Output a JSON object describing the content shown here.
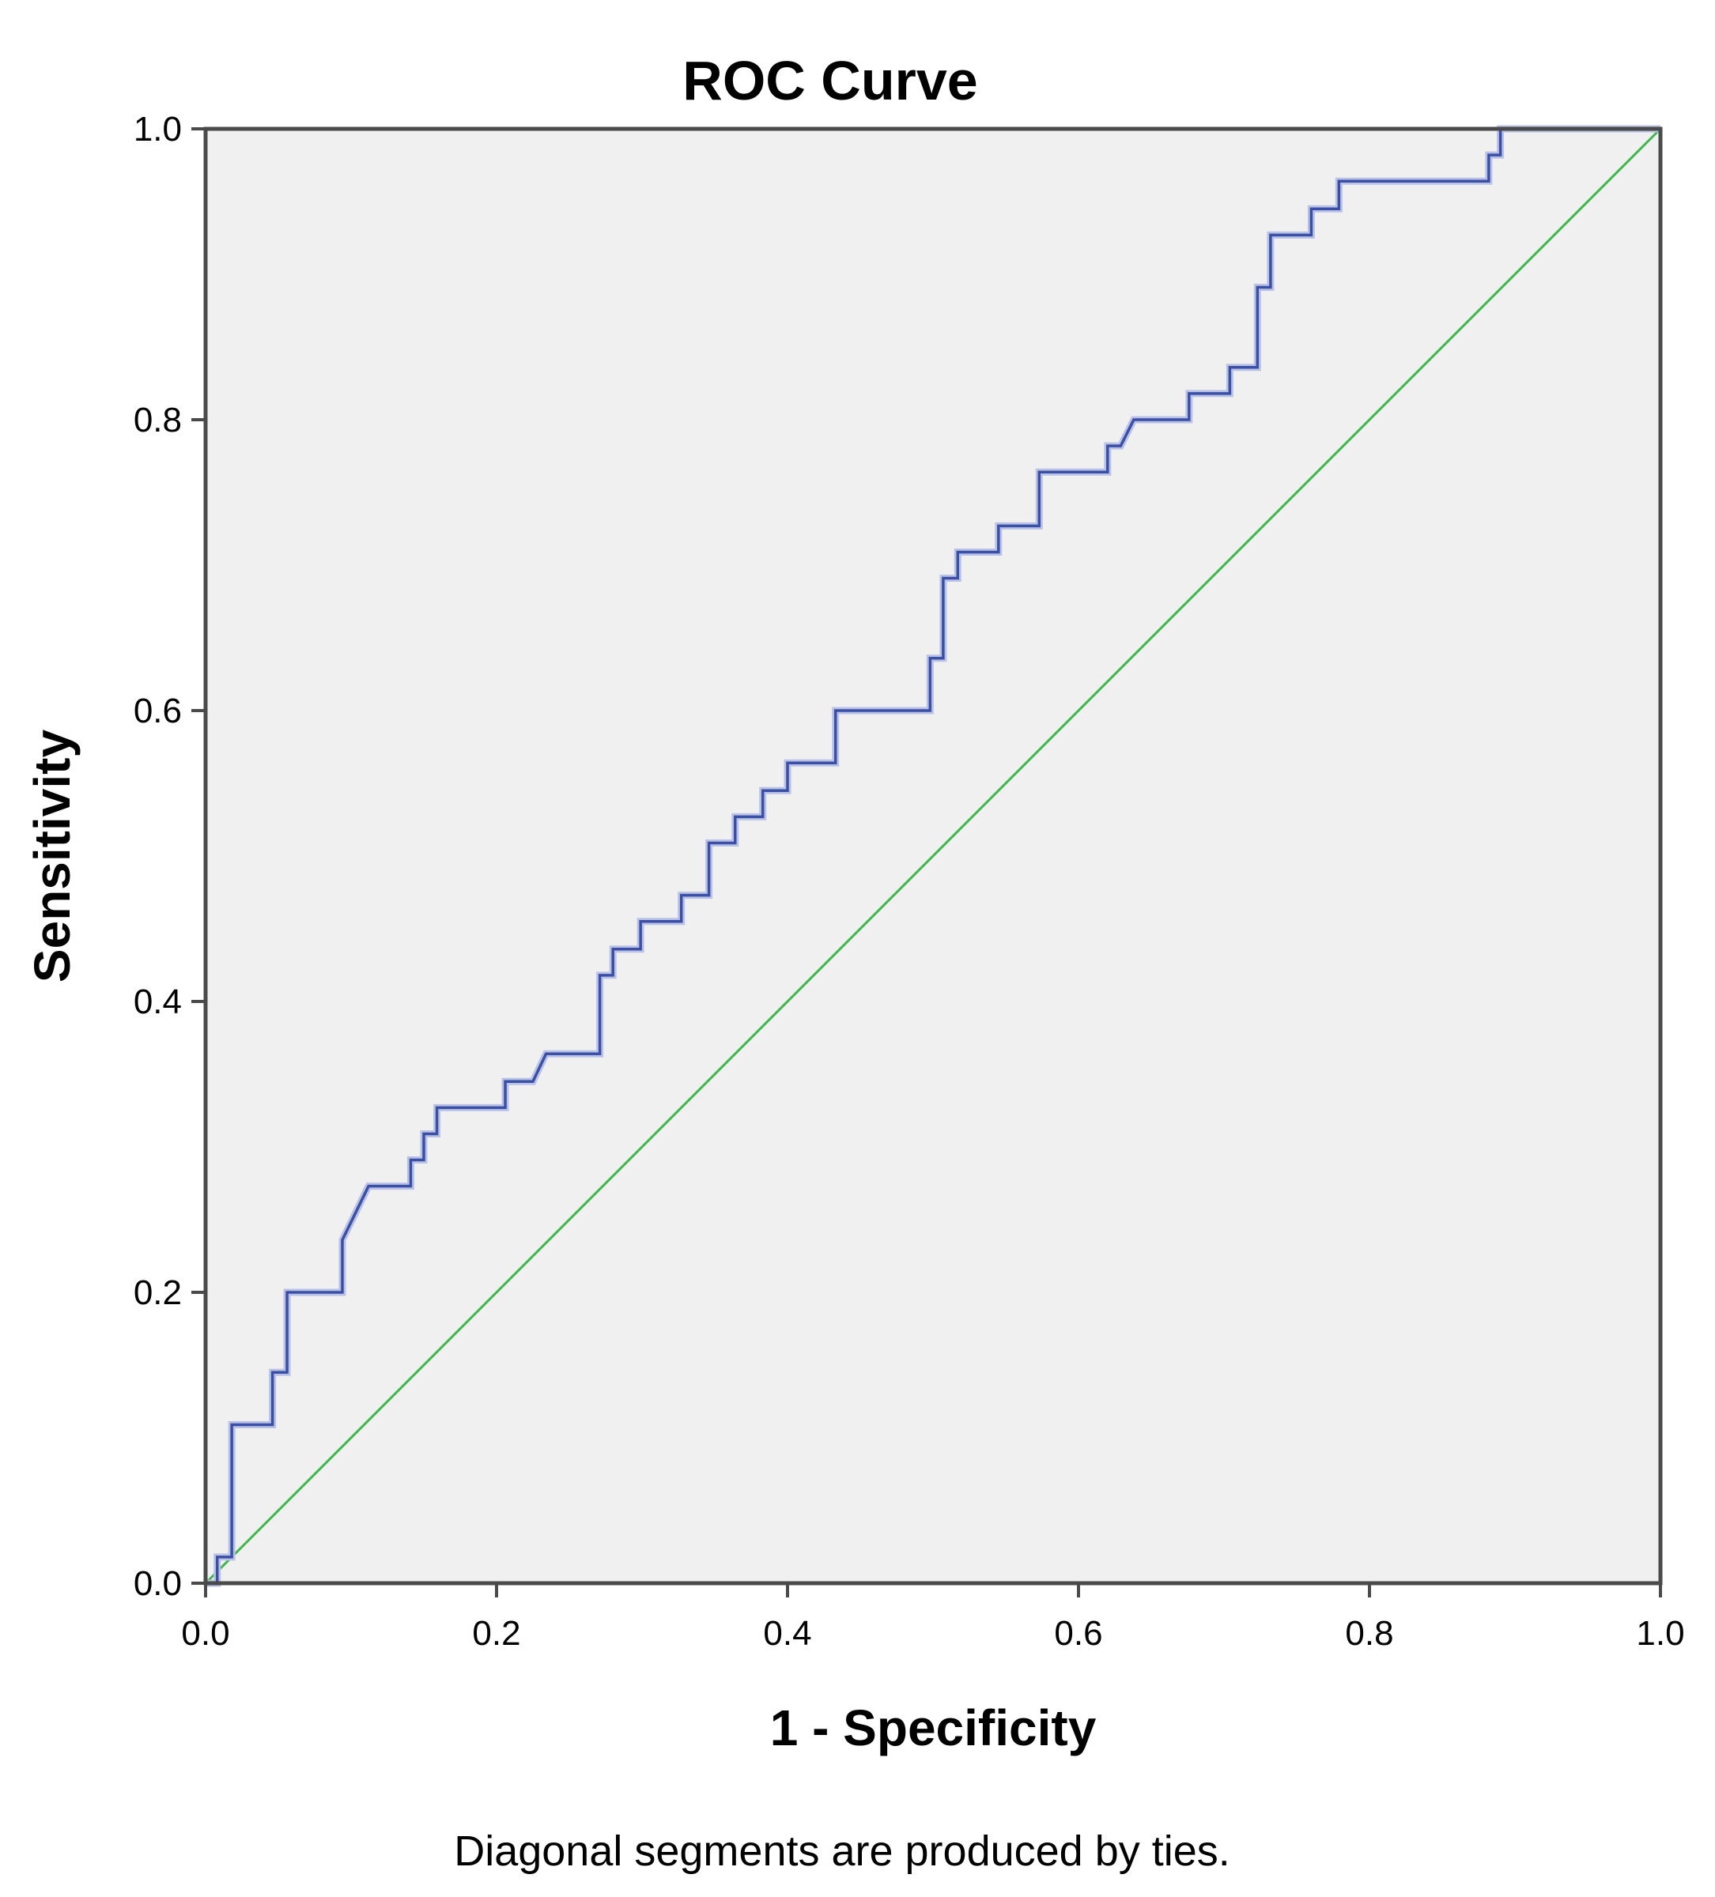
{
  "chart_data": {
    "type": "line",
    "title": "ROC Curve",
    "xlabel": "1 - Specificity",
    "ylabel": "Sensitivity",
    "footnote": "Diagonal segments are produced by ties.",
    "xlim": [
      0,
      1
    ],
    "ylim": [
      0,
      1
    ],
    "x_ticks": [
      "0.0",
      "0.2",
      "0.4",
      "0.6",
      "0.8",
      "1.0"
    ],
    "y_ticks": [
      "0.0",
      "0.2",
      "0.4",
      "0.6",
      "0.8",
      "1.0"
    ],
    "grid": false,
    "plot_background": "#f0f0f0",
    "series": [
      {
        "color": "#3a4fa8",
        "points": [
          [
            0.0,
            0.0
          ],
          [
            0.008,
            0.0
          ],
          [
            0.008,
            0.018
          ],
          [
            0.018,
            0.018
          ],
          [
            0.018,
            0.109
          ],
          [
            0.046,
            0.109
          ],
          [
            0.046,
            0.145
          ],
          [
            0.056,
            0.145
          ],
          [
            0.056,
            0.2
          ],
          [
            0.094,
            0.2
          ],
          [
            0.094,
            0.236
          ],
          [
            0.112,
            0.273
          ],
          [
            0.141,
            0.273
          ],
          [
            0.141,
            0.291
          ],
          [
            0.15,
            0.291
          ],
          [
            0.15,
            0.309
          ],
          [
            0.159,
            0.309
          ],
          [
            0.159,
            0.327
          ],
          [
            0.206,
            0.327
          ],
          [
            0.206,
            0.345
          ],
          [
            0.225,
            0.345
          ],
          [
            0.234,
            0.364
          ],
          [
            0.271,
            0.364
          ],
          [
            0.271,
            0.418
          ],
          [
            0.28,
            0.418
          ],
          [
            0.28,
            0.436
          ],
          [
            0.299,
            0.436
          ],
          [
            0.299,
            0.455
          ],
          [
            0.327,
            0.455
          ],
          [
            0.327,
            0.473
          ],
          [
            0.346,
            0.473
          ],
          [
            0.346,
            0.509
          ],
          [
            0.364,
            0.509
          ],
          [
            0.364,
            0.527
          ],
          [
            0.383,
            0.527
          ],
          [
            0.383,
            0.545
          ],
          [
            0.4,
            0.545
          ],
          [
            0.4,
            0.564
          ],
          [
            0.433,
            0.564
          ],
          [
            0.433,
            0.6
          ],
          [
            0.498,
            0.6
          ],
          [
            0.498,
            0.636
          ],
          [
            0.507,
            0.636
          ],
          [
            0.507,
            0.691
          ],
          [
            0.517,
            0.691
          ],
          [
            0.517,
            0.709
          ],
          [
            0.545,
            0.709
          ],
          [
            0.545,
            0.727
          ],
          [
            0.573,
            0.727
          ],
          [
            0.573,
            0.764
          ],
          [
            0.62,
            0.764
          ],
          [
            0.62,
            0.782
          ],
          [
            0.629,
            0.782
          ],
          [
            0.638,
            0.8
          ],
          [
            0.676,
            0.8
          ],
          [
            0.676,
            0.818
          ],
          [
            0.704,
            0.818
          ],
          [
            0.704,
            0.836
          ],
          [
            0.723,
            0.836
          ],
          [
            0.723,
            0.891
          ],
          [
            0.732,
            0.891
          ],
          [
            0.732,
            0.927
          ],
          [
            0.76,
            0.927
          ],
          [
            0.76,
            0.945
          ],
          [
            0.779,
            0.945
          ],
          [
            0.779,
            0.964
          ],
          [
            0.882,
            0.964
          ],
          [
            0.882,
            0.982
          ],
          [
            0.89,
            0.982
          ],
          [
            0.89,
            1.0
          ],
          [
            1.0,
            1.0
          ]
        ]
      },
      {
        "color": "#3cb84a",
        "points": [
          [
            0,
            0
          ],
          [
            1,
            1
          ]
        ]
      }
    ]
  }
}
